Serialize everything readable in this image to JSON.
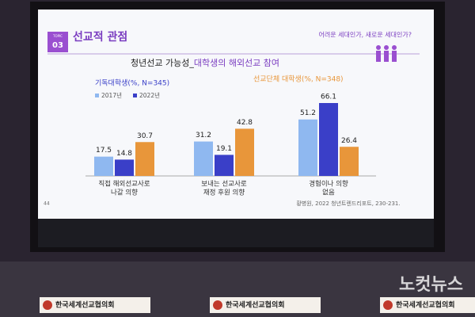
{
  "slide": {
    "badge_top": "TOPIC",
    "badge_number": "03",
    "heading": "선교적 관점",
    "tagline": "어려운 세대인가, 새로운 세대인가?",
    "source": "황병원, 2022 청년트렌드리포트, 230-231.",
    "page": "44"
  },
  "chart_data": {
    "type": "bar",
    "title": [
      "청년선교 가능성_",
      "대학생의 해외선교 참여"
    ],
    "subtitle": "기독대학생(%, N=345)",
    "categories": [
      [
        "직접 해외선교사로",
        "나갈 의향"
      ],
      [
        "보내는 선교사로",
        "재정 후원 의향"
      ],
      [
        "경험이나 의향",
        "없음"
      ]
    ],
    "series": [
      {
        "name": "2017년",
        "color": "#8fb8f0",
        "values": [
          17.5,
          31.2,
          51.2
        ]
      },
      {
        "name": "2022년",
        "color": "#3a3fc8",
        "values": [
          14.8,
          19.1,
          66.1
        ]
      },
      {
        "name": "선교단체 대학생(%, N=348)",
        "color": "#e8963a",
        "values": [
          30.7,
          42.8,
          26.4
        ]
      }
    ]
  },
  "banners": [
    "한국세계선교협의회",
    "한국세계선교협의회",
    "한국세계선교협의회"
  ],
  "watermark": "노컷뉴스"
}
